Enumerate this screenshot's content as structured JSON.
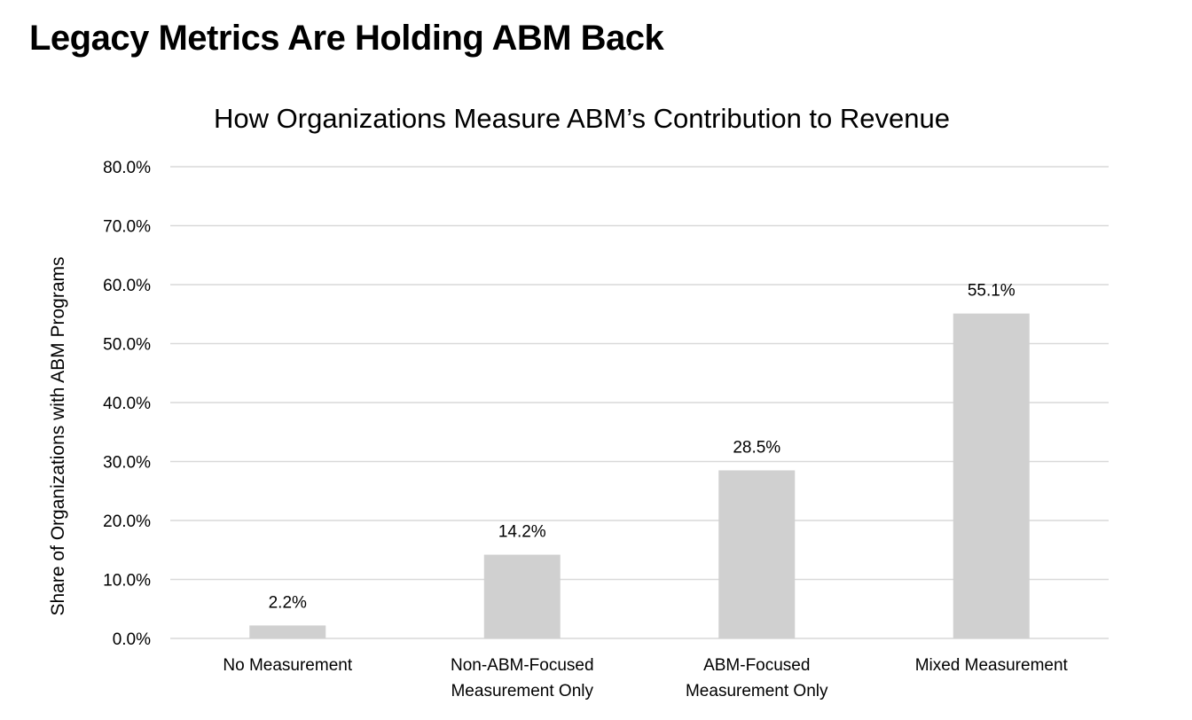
{
  "page": {
    "headline": "Legacy Metrics Are Holding ABM Back"
  },
  "chart_data": {
    "type": "bar",
    "title": "How Organizations Measure ABM’s Contribution to Revenue",
    "xlabel": "",
    "ylabel": "Share of Organizations with ABM Programs",
    "categories": [
      [
        "No Measurement"
      ],
      [
        "Non-ABM-Focused",
        "Measurement Only"
      ],
      [
        "ABM-Focused",
        "Measurement Only"
      ],
      [
        "Mixed Measurement"
      ]
    ],
    "values": [
      2.2,
      14.2,
      28.5,
      55.1
    ],
    "data_labels": [
      "2.2%",
      "14.2%",
      "28.5%",
      "55.1%"
    ],
    "ylim": [
      0,
      80
    ],
    "yticks": [
      0,
      10,
      20,
      30,
      40,
      50,
      60,
      70,
      80
    ],
    "ytick_labels": [
      "0.0%",
      "10.0%",
      "20.0%",
      "30.0%",
      "40.0%",
      "50.0%",
      "60.0%",
      "70.0%",
      "80.0%"
    ],
    "grid": true,
    "legend": "none",
    "bar_color": "#d0d0d0",
    "grid_color": "#d9d9d9"
  }
}
